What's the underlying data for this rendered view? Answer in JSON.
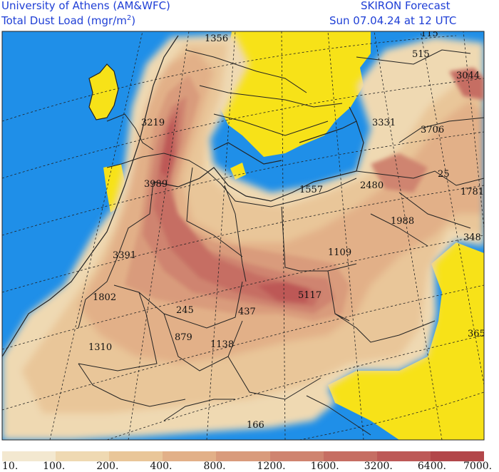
{
  "header": {
    "institution": "University of Athens (AM&WFC)",
    "forecast_name": "SKIRON Forecast",
    "variable": "Total Dust Load (mgr/m",
    "variable_sup": "2",
    "variable_close": ")",
    "valid_time": "Sun 07.04.24 at 12 UTC"
  },
  "colors": {
    "sea": "#1f8fe8",
    "no_dust_land": "#f7e218",
    "border": "#222222",
    "gridline": "#222222"
  },
  "legend": {
    "ticks": [
      "10.",
      "100.",
      "200.",
      "400.",
      "800.",
      "1200.",
      "1600.",
      "3200.",
      "6400.",
      "7000."
    ],
    "swatches": [
      "#f3e8d0",
      "#efd9b2",
      "#e9c699",
      "#e2b088",
      "#d99b7c",
      "#cf8470",
      "#c66e63",
      "#bd5957",
      "#b2474a"
    ]
  },
  "values": [
    {
      "name": "value-1356",
      "text": "1356"
    },
    {
      "name": "value-115",
      "text": "115"
    },
    {
      "name": "value-515",
      "text": "515"
    },
    {
      "name": "value-3044",
      "text": "3044"
    },
    {
      "name": "value-3219",
      "text": "3219"
    },
    {
      "name": "value-3331",
      "text": "3331"
    },
    {
      "name": "value-3706",
      "text": "3706"
    },
    {
      "name": "value-25",
      "text": "25"
    },
    {
      "name": "value-3989",
      "text": "3989"
    },
    {
      "name": "value-1557",
      "text": "1557"
    },
    {
      "name": "value-2480",
      "text": "2480"
    },
    {
      "name": "value-1781",
      "text": "1781"
    },
    {
      "name": "value-1988",
      "text": "1988"
    },
    {
      "name": "value-348",
      "text": "348"
    },
    {
      "name": "value-3391",
      "text": "3391"
    },
    {
      "name": "value-1109",
      "text": "1109"
    },
    {
      "name": "value-1802",
      "text": "1802"
    },
    {
      "name": "value-5117",
      "text": "5117"
    },
    {
      "name": "value-245",
      "text": "245"
    },
    {
      "name": "value-437",
      "text": "437"
    },
    {
      "name": "value-879",
      "text": "879"
    },
    {
      "name": "value-1138",
      "text": "1138"
    },
    {
      "name": "value-1310",
      "text": "1310"
    },
    {
      "name": "value-365",
      "text": "365"
    },
    {
      "name": "value-166",
      "text": "166"
    }
  ]
}
